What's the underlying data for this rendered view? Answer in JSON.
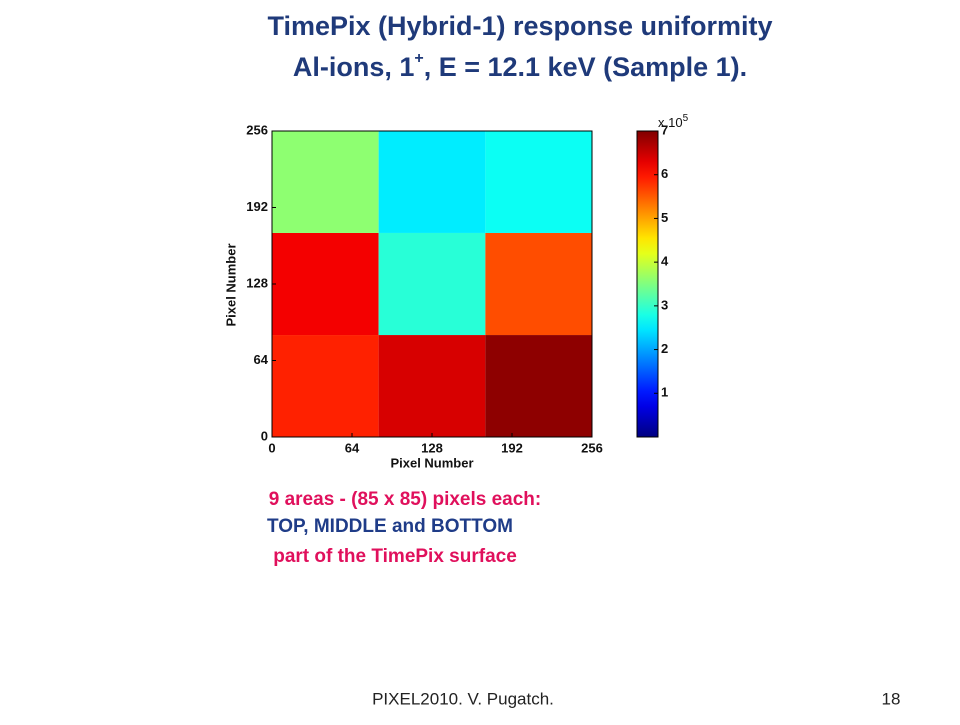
{
  "slide": {
    "title_line1": "TimePix (Hybrid-1) response uniformity",
    "title_line2_start": "Al-ions,  1",
    "title_line2_sup": "+",
    "title_line2_end": ",  E = 12.1 keV  (Sample 1).",
    "note_line1": "9 areas - (85 x 85) pixels each:",
    "note_line2": "TOP, MIDDLE and BOTTOM",
    "note_line3": "part of the TimePix surface",
    "footer": "PIXEL2010. V. Pugatch.",
    "page_number": "18"
  },
  "chart_data": {
    "type": "heatmap",
    "x_label": "Pixel Number",
    "y_label": "Pixel Number",
    "x_bins": [
      0,
      85.3,
      170.7,
      256
    ],
    "y_bins": [
      0,
      85.3,
      170.7,
      256
    ],
    "z": [
      [
        5.9,
        6.4,
        6.9
      ],
      [
        6.2,
        2.9,
        5.6
      ],
      [
        3.6,
        2.5,
        2.7
      ]
    ],
    "xlim": [
      0,
      256
    ],
    "ylim": [
      0,
      256
    ],
    "xticks": [
      0,
      64,
      128,
      192,
      256
    ],
    "yticks": [
      0,
      64,
      128,
      192,
      256
    ],
    "cmap": "jet",
    "clim": [
      0,
      7
    ],
    "colorbar_ticks": [
      1,
      2,
      3,
      4,
      5,
      6,
      7
    ],
    "colorbar_multiplier": "x 10",
    "colorbar_exponent": "5"
  }
}
